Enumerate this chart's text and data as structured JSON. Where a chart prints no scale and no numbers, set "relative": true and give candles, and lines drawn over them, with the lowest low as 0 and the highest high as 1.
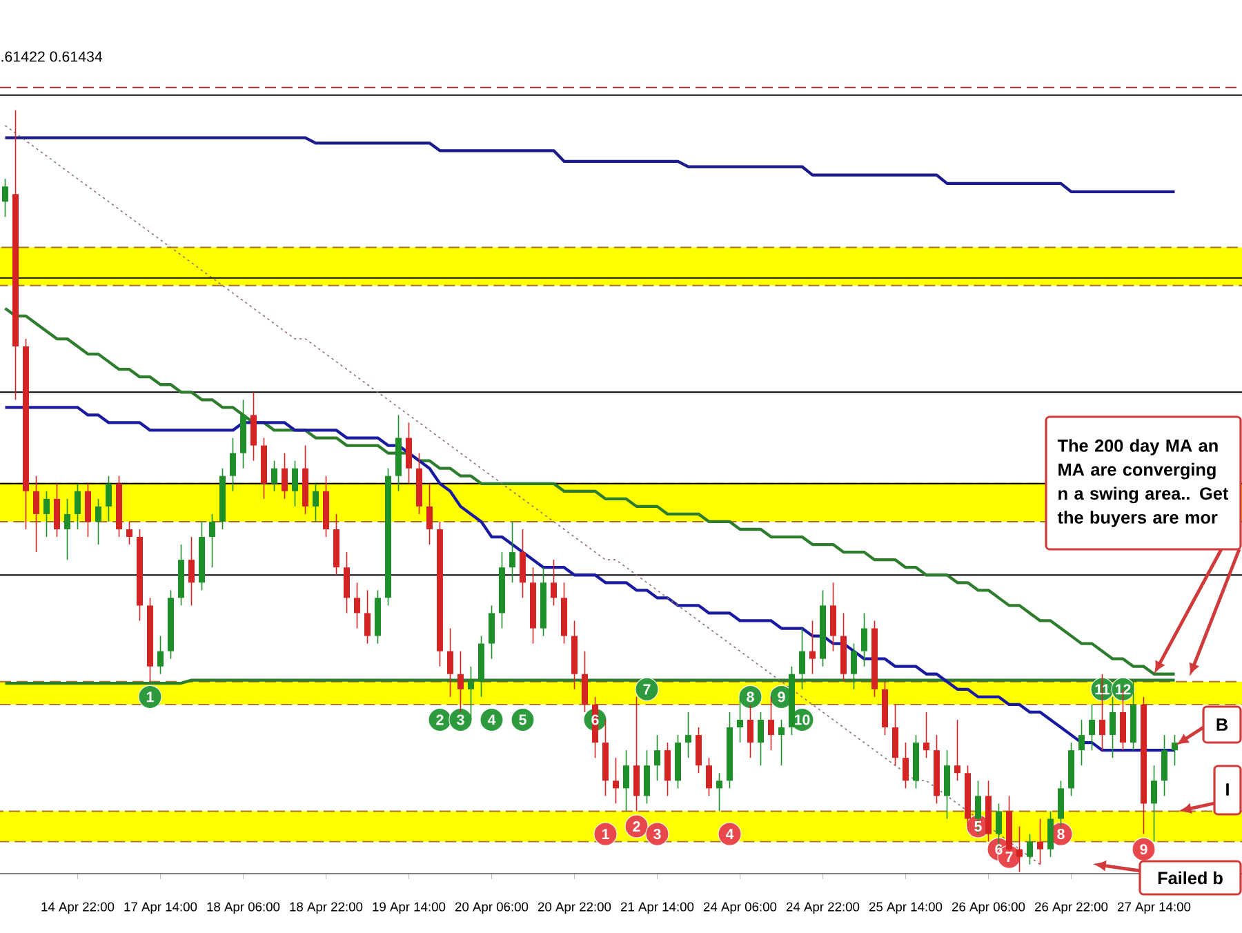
{
  "chart_data": {
    "type": "candlestick",
    "relative": true,
    "categories": [
      null,
      null,
      null,
      null,
      null,
      null,
      null,
      "14 Apr 22:00",
      null,
      null,
      null,
      null,
      null,
      null,
      null,
      "17 Apr 14:00",
      null,
      null,
      null,
      null,
      null,
      null,
      null,
      "18 Apr 06:00",
      null,
      null,
      null,
      null,
      null,
      null,
      null,
      "18 Apr 22:00",
      null,
      null,
      null,
      null,
      null,
      null,
      null,
      "19 Apr 14:00",
      null,
      null,
      null,
      null,
      null,
      null,
      null,
      "20 Apr 06:00",
      null,
      null,
      null,
      null,
      null,
      null,
      null,
      "20 Apr 22:00",
      null,
      null,
      null,
      null,
      null,
      null,
      null,
      "21 Apr 14:00",
      null,
      null,
      null,
      null,
      null,
      null,
      null,
      "24 Apr 06:00",
      null,
      null,
      null,
      null,
      null,
      null,
      null,
      "24 Apr 22:00",
      null,
      null,
      null,
      null,
      null,
      null,
      null,
      "25 Apr 14:00",
      null,
      null,
      null,
      null,
      null,
      null,
      null,
      "26 Apr 06:00",
      null,
      null,
      null,
      null,
      null,
      null,
      null,
      "26 Apr 22:00",
      null,
      null,
      null,
      null,
      null,
      null,
      null,
      "27 Apr 14:00",
      null,
      null
    ],
    "ohlc": [
      [
        0.88,
        0.91,
        0.86,
        0.9
      ],
      [
        0.89,
        1.0,
        0.62,
        0.69
      ],
      [
        0.69,
        0.7,
        0.45,
        0.5
      ],
      [
        0.5,
        0.52,
        0.42,
        0.47
      ],
      [
        0.47,
        0.5,
        0.44,
        0.49
      ],
      [
        0.49,
        0.51,
        0.44,
        0.45
      ],
      [
        0.45,
        0.49,
        0.41,
        0.47
      ],
      [
        0.47,
        0.51,
        0.45,
        0.5
      ],
      [
        0.5,
        0.51,
        0.44,
        0.46
      ],
      [
        0.46,
        0.49,
        0.43,
        0.48
      ],
      [
        0.48,
        0.52,
        0.46,
        0.51
      ],
      [
        0.51,
        0.52,
        0.44,
        0.45
      ],
      [
        0.45,
        0.46,
        0.43,
        0.44
      ],
      [
        0.44,
        0.45,
        0.33,
        0.35
      ],
      [
        0.35,
        0.36,
        0.25,
        0.27
      ],
      [
        0.27,
        0.31,
        0.26,
        0.29
      ],
      [
        0.29,
        0.37,
        0.28,
        0.36
      ],
      [
        0.36,
        0.43,
        0.35,
        0.41
      ],
      [
        0.41,
        0.44,
        0.35,
        0.38
      ],
      [
        0.38,
        0.46,
        0.37,
        0.44
      ],
      [
        0.44,
        0.47,
        0.4,
        0.46
      ],
      [
        0.46,
        0.53,
        0.45,
        0.52
      ],
      [
        0.52,
        0.57,
        0.5,
        0.55
      ],
      [
        0.55,
        0.62,
        0.53,
        0.6
      ],
      [
        0.6,
        0.63,
        0.54,
        0.56
      ],
      [
        0.56,
        0.57,
        0.49,
        0.51
      ],
      [
        0.51,
        0.54,
        0.5,
        0.53
      ],
      [
        0.53,
        0.55,
        0.49,
        0.5
      ],
      [
        0.5,
        0.54,
        0.48,
        0.53
      ],
      [
        0.53,
        0.56,
        0.47,
        0.48
      ],
      [
        0.48,
        0.51,
        0.46,
        0.5
      ],
      [
        0.5,
        0.52,
        0.44,
        0.45
      ],
      [
        0.45,
        0.47,
        0.39,
        0.4
      ],
      [
        0.4,
        0.42,
        0.34,
        0.36
      ],
      [
        0.36,
        0.38,
        0.32,
        0.34
      ],
      [
        0.34,
        0.37,
        0.3,
        0.31
      ],
      [
        0.31,
        0.37,
        0.3,
        0.36
      ],
      [
        0.36,
        0.53,
        0.35,
        0.52
      ],
      [
        0.52,
        0.6,
        0.5,
        0.57
      ],
      [
        0.57,
        0.59,
        0.51,
        0.53
      ],
      [
        0.53,
        0.55,
        0.47,
        0.48
      ],
      [
        0.48,
        0.51,
        0.43,
        0.45
      ],
      [
        0.45,
        0.46,
        0.27,
        0.29
      ],
      [
        0.29,
        0.32,
        0.23,
        0.26
      ],
      [
        0.26,
        0.29,
        0.21,
        0.24
      ],
      [
        0.24,
        0.27,
        0.2,
        0.25
      ],
      [
        0.25,
        0.31,
        0.23,
        0.3
      ],
      [
        0.3,
        0.35,
        0.28,
        0.34
      ],
      [
        0.34,
        0.42,
        0.32,
        0.4
      ],
      [
        0.4,
        0.46,
        0.38,
        0.42
      ],
      [
        0.42,
        0.45,
        0.36,
        0.38
      ],
      [
        0.38,
        0.4,
        0.3,
        0.32
      ],
      [
        0.32,
        0.4,
        0.31,
        0.38
      ],
      [
        0.38,
        0.41,
        0.35,
        0.36
      ],
      [
        0.36,
        0.38,
        0.3,
        0.31
      ],
      [
        0.31,
        0.33,
        0.24,
        0.26
      ],
      [
        0.26,
        0.29,
        0.21,
        0.22
      ],
      [
        0.22,
        0.23,
        0.15,
        0.17
      ],
      [
        0.17,
        0.2,
        0.1,
        0.12
      ],
      [
        0.12,
        0.15,
        0.09,
        0.11
      ],
      [
        0.11,
        0.16,
        0.08,
        0.14
      ],
      [
        0.14,
        0.23,
        0.08,
        0.1
      ],
      [
        0.1,
        0.16,
        0.09,
        0.14
      ],
      [
        0.14,
        0.18,
        0.12,
        0.16
      ],
      [
        0.16,
        0.17,
        0.1,
        0.12
      ],
      [
        0.12,
        0.18,
        0.11,
        0.17
      ],
      [
        0.17,
        0.21,
        0.15,
        0.18
      ],
      [
        0.18,
        0.19,
        0.13,
        0.14
      ],
      [
        0.14,
        0.15,
        0.1,
        0.11
      ],
      [
        0.11,
        0.13,
        0.08,
        0.12
      ],
      [
        0.12,
        0.21,
        0.11,
        0.19
      ],
      [
        0.19,
        0.23,
        0.17,
        0.2
      ],
      [
        0.2,
        0.22,
        0.15,
        0.17
      ],
      [
        0.17,
        0.21,
        0.14,
        0.2
      ],
      [
        0.2,
        0.23,
        0.16,
        0.18
      ],
      [
        0.18,
        0.2,
        0.14,
        0.19
      ],
      [
        0.19,
        0.27,
        0.18,
        0.26
      ],
      [
        0.26,
        0.32,
        0.24,
        0.29
      ],
      [
        0.29,
        0.33,
        0.26,
        0.28
      ],
      [
        0.28,
        0.37,
        0.27,
        0.35
      ],
      [
        0.35,
        0.38,
        0.29,
        0.31
      ],
      [
        0.31,
        0.34,
        0.25,
        0.26
      ],
      [
        0.26,
        0.3,
        0.24,
        0.29
      ],
      [
        0.29,
        0.34,
        0.27,
        0.32
      ],
      [
        0.32,
        0.33,
        0.23,
        0.24
      ],
      [
        0.24,
        0.25,
        0.18,
        0.19
      ],
      [
        0.19,
        0.22,
        0.14,
        0.15
      ],
      [
        0.15,
        0.17,
        0.11,
        0.12
      ],
      [
        0.12,
        0.18,
        0.11,
        0.17
      ],
      [
        0.17,
        0.21,
        0.15,
        0.16
      ],
      [
        0.16,
        0.18,
        0.09,
        0.1
      ],
      [
        0.1,
        0.16,
        0.07,
        0.14
      ],
      [
        0.14,
        0.2,
        0.12,
        0.13
      ],
      [
        0.13,
        0.14,
        0.06,
        0.07
      ],
      [
        0.07,
        0.12,
        0.05,
        0.1
      ],
      [
        0.1,
        0.12,
        0.04,
        0.05
      ],
      [
        0.05,
        0.09,
        0.03,
        0.08
      ],
      [
        0.08,
        0.1,
        0.02,
        0.03
      ],
      [
        0.03,
        0.06,
        0.0,
        0.02
      ],
      [
        0.02,
        0.05,
        0.01,
        0.04
      ],
      [
        0.04,
        0.07,
        0.01,
        0.03
      ],
      [
        0.03,
        0.08,
        0.02,
        0.07
      ],
      [
        0.07,
        0.12,
        0.06,
        0.11
      ],
      [
        0.11,
        0.17,
        0.1,
        0.16
      ],
      [
        0.16,
        0.2,
        0.14,
        0.18
      ],
      [
        0.18,
        0.22,
        0.16,
        0.2
      ],
      [
        0.2,
        0.26,
        0.16,
        0.18
      ],
      [
        0.18,
        0.23,
        0.15,
        0.21
      ],
      [
        0.21,
        0.24,
        0.16,
        0.17
      ],
      [
        0.17,
        0.25,
        0.16,
        0.22
      ],
      [
        0.22,
        0.23,
        0.05,
        0.09
      ],
      [
        0.09,
        0.14,
        0.04,
        0.12
      ],
      [
        0.12,
        0.18,
        0.1,
        0.16
      ],
      [
        0.16,
        0.18,
        0.14,
        0.17
      ]
    ],
    "series": [
      {
        "type": "line",
        "color": "#1a1a8c",
        "line_style": "solid",
        "values": [
          0.964,
          0.964,
          0.964,
          0.964,
          0.964,
          0.964,
          0.964,
          0.964,
          0.964,
          0.964,
          0.964,
          0.964,
          0.964,
          0.964,
          0.964,
          0.964,
          0.964,
          0.964,
          0.964,
          0.964,
          0.964,
          0.964,
          0.964,
          0.964,
          0.964,
          0.964,
          0.964,
          0.964,
          0.964,
          0.964,
          0.957,
          0.957,
          0.957,
          0.957,
          0.957,
          0.957,
          0.957,
          0.957,
          0.957,
          0.957,
          0.957,
          0.957,
          0.947,
          0.947,
          0.947,
          0.947,
          0.947,
          0.947,
          0.947,
          0.947,
          0.947,
          0.947,
          0.947,
          0.947,
          0.933,
          0.933,
          0.933,
          0.933,
          0.933,
          0.933,
          0.933,
          0.933,
          0.933,
          0.933,
          0.933,
          0.933,
          0.926,
          0.926,
          0.926,
          0.926,
          0.926,
          0.926,
          0.926,
          0.926,
          0.926,
          0.926,
          0.926,
          0.926,
          0.915,
          0.915,
          0.915,
          0.915,
          0.915,
          0.915,
          0.915,
          0.915,
          0.915,
          0.915,
          0.915,
          0.915,
          0.915,
          0.904,
          0.904,
          0.904,
          0.904,
          0.904,
          0.904,
          0.904,
          0.904,
          0.904,
          0.904,
          0.904,
          0.904,
          0.893,
          0.893,
          0.893,
          0.893,
          0.893,
          0.893,
          0.893,
          0.893,
          0.893,
          0.893,
          0.893
        ]
      },
      {
        "type": "line",
        "color": "#2e7d2e",
        "line_style": "solid",
        "values": [
          0.248,
          0.248,
          0.248,
          0.248,
          0.248,
          0.248,
          0.248,
          0.248,
          0.248,
          0.248,
          0.248,
          0.248,
          0.248,
          0.248,
          0.248,
          0.248,
          0.248,
          0.248,
          0.252,
          0.252,
          0.252,
          0.252,
          0.252,
          0.252,
          0.252,
          0.252,
          0.252,
          0.252,
          0.252,
          0.252,
          0.252,
          0.252,
          0.252,
          0.252,
          0.252,
          0.252,
          0.252,
          0.252,
          0.252,
          0.252,
          0.252,
          0.252,
          0.252,
          0.252,
          0.252,
          0.252,
          0.252,
          0.252,
          0.252,
          0.252,
          0.252,
          0.252,
          0.252,
          0.252,
          0.252,
          0.252,
          0.252,
          0.252,
          0.252,
          0.252,
          0.252,
          0.252,
          0.252,
          0.252,
          0.252,
          0.252,
          0.252,
          0.252,
          0.252,
          0.252,
          0.252,
          0.252,
          0.252,
          0.252,
          0.252,
          0.252,
          0.252,
          0.252,
          0.252,
          0.252,
          0.252,
          0.252,
          0.252,
          0.252,
          0.252,
          0.252,
          0.252,
          0.252,
          0.252,
          0.252,
          0.252,
          0.252,
          0.252,
          0.252,
          0.252,
          0.252,
          0.252,
          0.252,
          0.252,
          0.252,
          0.252,
          0.252,
          0.252,
          0.252,
          0.252,
          0.252,
          0.252,
          0.252,
          0.252,
          0.252,
          0.252,
          0.252,
          0.252,
          0.252
        ]
      },
      {
        "type": "line",
        "color": "#2e7d2e",
        "line_style": "solid",
        "values": [
          0.74,
          0.73,
          0.73,
          0.72,
          0.71,
          0.7,
          0.7,
          0.69,
          0.68,
          0.68,
          0.67,
          0.66,
          0.66,
          0.65,
          0.65,
          0.64,
          0.64,
          0.63,
          0.63,
          0.62,
          0.62,
          0.61,
          0.61,
          0.6,
          0.59,
          0.59,
          0.58,
          0.58,
          0.58,
          0.58,
          0.57,
          0.57,
          0.57,
          0.56,
          0.56,
          0.56,
          0.56,
          0.55,
          0.55,
          0.55,
          0.54,
          0.54,
          0.53,
          0.53,
          0.52,
          0.52,
          0.51,
          0.51,
          0.51,
          0.51,
          0.51,
          0.51,
          0.51,
          0.51,
          0.5,
          0.5,
          0.5,
          0.5,
          0.49,
          0.49,
          0.49,
          0.48,
          0.48,
          0.48,
          0.47,
          0.47,
          0.47,
          0.47,
          0.46,
          0.46,
          0.46,
          0.45,
          0.45,
          0.45,
          0.44,
          0.44,
          0.44,
          0.44,
          0.43,
          0.43,
          0.43,
          0.42,
          0.42,
          0.42,
          0.41,
          0.41,
          0.41,
          0.4,
          0.4,
          0.39,
          0.39,
          0.39,
          0.38,
          0.38,
          0.37,
          0.37,
          0.36,
          0.35,
          0.35,
          0.34,
          0.33,
          0.33,
          0.32,
          0.31,
          0.3,
          0.3,
          0.29,
          0.28,
          0.28,
          0.27,
          0.27,
          0.26,
          0.26,
          0.26
        ]
      },
      {
        "type": "line",
        "color": "#1a1aa0",
        "line_style": "solid",
        "values": [
          0.61,
          0.61,
          0.61,
          0.61,
          0.61,
          0.61,
          0.61,
          0.61,
          0.6,
          0.6,
          0.59,
          0.59,
          0.59,
          0.59,
          0.58,
          0.58,
          0.58,
          0.58,
          0.58,
          0.58,
          0.58,
          0.58,
          0.58,
          0.59,
          0.59,
          0.59,
          0.59,
          0.59,
          0.58,
          0.58,
          0.58,
          0.58,
          0.58,
          0.57,
          0.57,
          0.57,
          0.57,
          0.56,
          0.56,
          0.55,
          0.54,
          0.53,
          0.51,
          0.5,
          0.48,
          0.47,
          0.46,
          0.44,
          0.44,
          0.43,
          0.42,
          0.41,
          0.4,
          0.4,
          0.4,
          0.39,
          0.39,
          0.39,
          0.38,
          0.38,
          0.38,
          0.37,
          0.37,
          0.36,
          0.36,
          0.35,
          0.35,
          0.35,
          0.34,
          0.34,
          0.34,
          0.33,
          0.33,
          0.33,
          0.33,
          0.32,
          0.32,
          0.32,
          0.31,
          0.31,
          0.3,
          0.3,
          0.29,
          0.28,
          0.28,
          0.28,
          0.27,
          0.27,
          0.27,
          0.26,
          0.26,
          0.25,
          0.24,
          0.24,
          0.23,
          0.23,
          0.23,
          0.22,
          0.22,
          0.21,
          0.21,
          0.2,
          0.19,
          0.18,
          0.17,
          0.17,
          0.16,
          0.16,
          0.16,
          0.16,
          0.16,
          0.16,
          0.16,
          0.16
        ]
      },
      {
        "type": "line",
        "color": "#8c6f6f",
        "line_style": "dotted",
        "values": [
          0.98,
          0.97,
          0.96,
          0.95,
          0.94,
          0.93,
          0.92,
          0.91,
          0.9,
          0.89,
          0.88,
          0.87,
          0.86,
          0.85,
          0.84,
          0.83,
          0.82,
          0.81,
          0.8,
          0.79,
          0.78,
          0.77,
          0.76,
          0.75,
          0.74,
          0.73,
          0.72,
          0.71,
          0.7,
          0.7,
          0.69,
          0.68,
          0.67,
          0.66,
          0.65,
          0.64,
          0.63,
          0.62,
          0.61,
          0.6,
          0.59,
          0.58,
          0.57,
          0.56,
          0.55,
          0.54,
          0.53,
          0.52,
          0.51,
          0.5,
          0.49,
          0.48,
          0.47,
          0.46,
          0.45,
          0.44,
          0.43,
          0.42,
          0.41,
          0.41,
          0.4,
          0.39,
          0.38,
          0.37,
          0.36,
          0.35,
          0.34,
          0.33,
          0.32,
          0.31,
          0.3,
          0.29,
          0.28,
          0.27,
          0.26,
          0.25,
          0.24,
          0.23,
          0.22,
          0.21,
          0.2,
          0.19,
          0.18,
          0.17,
          0.16,
          0.15,
          0.14,
          0.13,
          0.12,
          0.12,
          0.11,
          0.1,
          0.09,
          0.08,
          0.07,
          0.06,
          0.05,
          0.04,
          0.03,
          0.02,
          0.01,
          null,
          null,
          null,
          null,
          null,
          null,
          null,
          null,
          null,
          null,
          null,
          null,
          null
        ]
      },
      {
        "type": "scatter",
        "marker": "circle",
        "color": "#2e9a3e",
        "values": [
          null,
          null,
          null,
          null,
          null,
          null,
          null,
          null,
          null,
          null,
          null,
          null,
          null,
          null,
          0.23,
          null,
          null,
          null,
          null,
          null,
          null,
          null,
          null,
          null,
          null,
          null,
          null,
          null,
          null,
          null,
          null,
          null,
          null,
          null,
          null,
          null,
          null,
          null,
          null,
          null,
          null,
          null,
          0.2,
          null,
          0.2,
          null,
          null,
          0.2,
          null,
          null,
          0.2,
          null,
          null,
          null,
          null,
          null,
          null,
          0.2,
          null,
          null,
          null,
          null,
          0.24,
          null,
          null,
          null,
          null,
          null,
          null,
          null,
          null,
          null,
          0.23,
          null,
          null,
          0.23,
          null,
          0.2,
          null,
          null,
          null,
          null,
          null,
          null,
          null,
          null,
          null,
          null,
          null,
          null,
          null,
          null,
          null,
          null,
          null,
          null,
          null,
          null,
          null,
          null,
          null,
          null,
          null,
          null,
          null,
          null,
          0.24,
          null,
          0.24,
          null,
          null,
          null,
          null,
          null
        ]
      },
      {
        "type": "scatter",
        "marker": "circle",
        "color": "#e8474c",
        "values": [
          null,
          null,
          null,
          null,
          null,
          null,
          null,
          null,
          null,
          null,
          null,
          null,
          null,
          null,
          null,
          null,
          null,
          null,
          null,
          null,
          null,
          null,
          null,
          null,
          null,
          null,
          null,
          null,
          null,
          null,
          null,
          null,
          null,
          null,
          null,
          null,
          null,
          null,
          null,
          null,
          null,
          null,
          null,
          null,
          null,
          null,
          null,
          null,
          null,
          null,
          null,
          null,
          null,
          null,
          null,
          null,
          null,
          null,
          0.05,
          null,
          null,
          0.06,
          null,
          0.05,
          null,
          null,
          null,
          null,
          null,
          null,
          0.05,
          null,
          null,
          null,
          null,
          null,
          null,
          null,
          null,
          null,
          null,
          null,
          null,
          null,
          null,
          null,
          null,
          null,
          null,
          null,
          null,
          null,
          null,
          null,
          0.06,
          null,
          0.03,
          0.02,
          null,
          null,
          null,
          null,
          0.05,
          null,
          null,
          null,
          null,
          null,
          null,
          null,
          0.03,
          null,
          null,
          null
        ]
      }
    ],
    "bands": [
      {
        "axis": "y",
        "from": 0.77,
        "to": 0.82,
        "color": "#ffff00"
      },
      {
        "axis": "y",
        "from": 0.46,
        "to": 0.51,
        "color": "#ffff00"
      },
      {
        "axis": "y",
        "from": 0.22,
        "to": 0.25,
        "color": "#ffff00"
      },
      {
        "axis": "y",
        "from": 0.04,
        "to": 0.08,
        "color": "#ffff00"
      }
    ],
    "ref_lines": [
      {
        "axis": "y",
        "value": 1.03,
        "color": "#a03030",
        "line_style": "dashed"
      },
      {
        "axis": "y",
        "value": 1.02,
        "color": "#000000",
        "line_style": "solid"
      },
      {
        "axis": "y",
        "value": 0.78,
        "color": "#000000",
        "line_style": "solid"
      },
      {
        "axis": "y",
        "value": 0.63,
        "color": "#000000",
        "line_style": "solid"
      },
      {
        "axis": "y",
        "value": 0.51,
        "color": "#000000",
        "line_style": "solid"
      },
      {
        "axis": "y",
        "value": 0.39,
        "color": "#000000",
        "line_style": "solid"
      }
    ],
    "annotations": [
      ".61422 0.61434",
      {
        "text": "The  200 day MA an MA are converging n a swing area..   Get the buyers are mor",
        "x": "27 Apr 14:00",
        "y": 0.26
      },
      "B",
      {
        "text": "I",
        "y": 0.08
      },
      "Failed b",
      "1",
      "2",
      "3",
      "4",
      "5",
      "6",
      "7",
      "8",
      "9",
      "10",
      "11",
      "12",
      "1",
      "2",
      "3",
      "4",
      "5",
      "6",
      "7",
      "8",
      "9"
    ]
  }
}
